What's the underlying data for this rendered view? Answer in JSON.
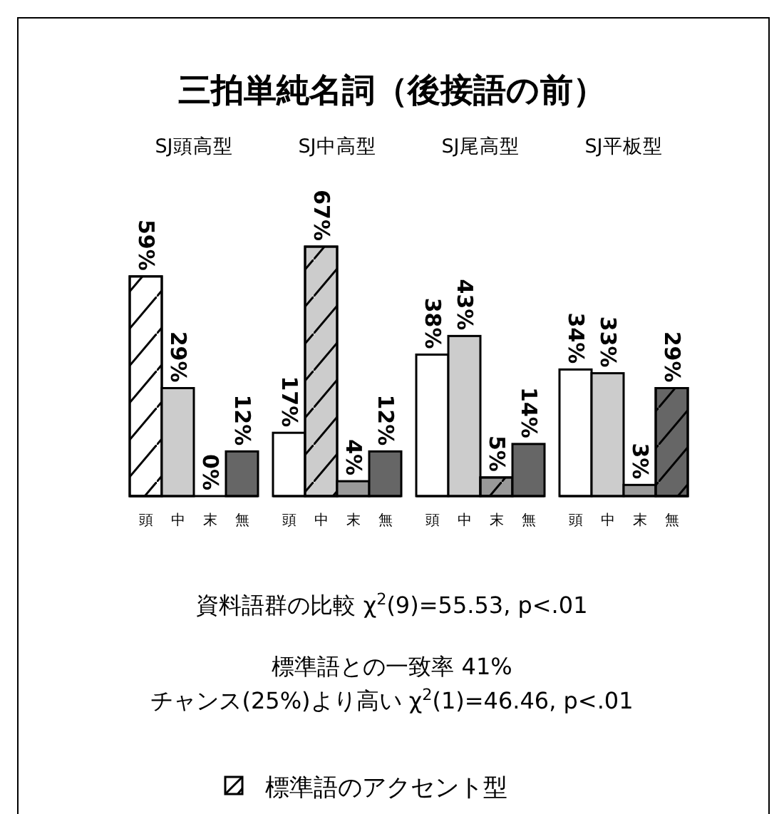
{
  "chart_data": [
    {
      "type": "other",
      "title": "三拍単純名詞（後接語の前）",
      "annotations": [
        "資料語群の比較  χ$^{2}$(9)=55.53, p<.01",
        "標準語との一致率 41%",
        "チャンス(25%)より高い  χ$^{2}$(1)=46.46, p<.01"
      ],
      "legend_title": "標準語のアクセント型"
    },
    {
      "type": "bar",
      "title": "SJ頭高型",
      "categories": [
        "頭",
        "中",
        "末",
        "無"
      ],
      "values": [
        59,
        29,
        0,
        12
      ],
      "value_labels": [
        "59%",
        "29%",
        "0%",
        "12%"
      ],
      "colors": [
        "#ffffff",
        "#cccccc",
        "#999999",
        "#666666"
      ]
    },
    {
      "type": "bar",
      "title": "SJ中高型",
      "categories": [
        "頭",
        "中",
        "末",
        "無"
      ],
      "values": [
        17,
        67,
        4,
        12
      ],
      "value_labels": [
        "17%",
        "67%",
        "4%",
        "12%"
      ],
      "colors": [
        "#ffffff",
        "#cccccc",
        "#999999",
        "#666666"
      ]
    },
    {
      "type": "bar",
      "title": "SJ尾高型",
      "categories": [
        "頭",
        "中",
        "末",
        "無"
      ],
      "values": [
        38,
        43,
        5,
        14
      ],
      "value_labels": [
        "38%",
        "43%",
        "5%",
        "14%"
      ],
      "colors": [
        "#ffffff",
        "#cccccc",
        "#999999",
        "#666666"
      ]
    },
    {
      "type": "bar",
      "title": "SJ平板型",
      "categories": [
        "頭",
        "中",
        "末",
        "無"
      ],
      "values": [
        34,
        33,
        3,
        29
      ],
      "value_labels": [
        "34%",
        "33%",
        "3%",
        "29%"
      ],
      "colors": [
        "#ffffff",
        "#cccccc",
        "#999999",
        "#666666"
      ]
    }
  ]
}
